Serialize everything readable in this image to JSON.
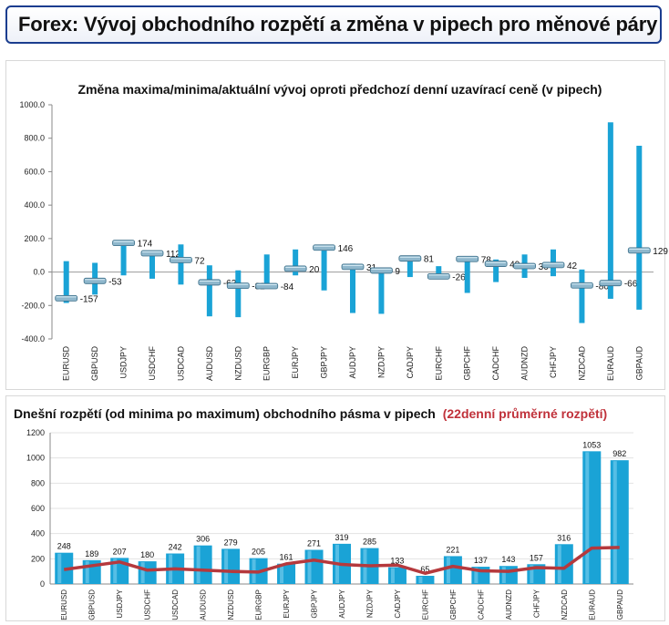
{
  "page": {
    "title": "Forex: Vývoj obchodního rozpětí a změna v pipech pro měnové páry"
  },
  "chart_data": [
    {
      "type": "bar",
      "title": "Změna maxima/minima/aktuální vývoj oproti předchozí denní uzavírací ceně (v pipech)",
      "categories": [
        "EURUSD",
        "GBPUSD",
        "USDJPY",
        "USDCHF",
        "USDCAD",
        "AUDUSD",
        "NZDUSD",
        "EURGBP",
        "EURJPY",
        "GBPJPY",
        "AUDJPY",
        "NZDJPY",
        "CADJPY",
        "EURCHF",
        "GBPCHF",
        "CADCHF",
        "AUDNZD",
        "CHFJPY",
        "NZDCAD",
        "EURAUD",
        "GBPAUD"
      ],
      "high": [
        65,
        55,
        185,
        125,
        165,
        40,
        10,
        105,
        135,
        155,
        50,
        20,
        95,
        35,
        95,
        75,
        105,
        135,
        15,
        895,
        755
      ],
      "low": [
        -185,
        -135,
        -20,
        -40,
        -75,
        -265,
        -270,
        -100,
        -20,
        -110,
        -245,
        -250,
        -30,
        -30,
        -125,
        -60,
        -35,
        -25,
        -305,
        -160,
        -225
      ],
      "current": [
        -157,
        -53,
        174,
        112,
        72,
        -62,
        -82,
        -84,
        20,
        146,
        31,
        9,
        81,
        -26,
        78,
        49,
        36,
        42,
        -80,
        -66,
        129
      ],
      "labels": [
        "-157",
        "-53",
        "174",
        "112",
        "72",
        "-62",
        "-82",
        "-84",
        "20",
        "146",
        "31",
        "9",
        "81",
        "-26",
        "78",
        "49",
        "36",
        "42",
        "-80",
        "-66",
        "129"
      ],
      "ylim": [
        -400,
        1000
      ],
      "yticks": [
        "1000.0",
        "800.0",
        "600.0",
        "400.0",
        "200.0",
        "0.0",
        "-200.0",
        "-400.0"
      ],
      "colors": {
        "range": "#1aa3d6",
        "marker": "#8fb7cc"
      }
    },
    {
      "type": "bar",
      "title": "Dnešní rozpětí (od minima po maximum) obchodního pásma v pipech",
      "title_highlight": "(22denní průměrné rozpětí)",
      "categories": [
        "EURUSD",
        "GBPUSD",
        "USDJPY",
        "USDCHF",
        "USDCAD",
        "AUDUSD",
        "NZDUSD",
        "EURGBP",
        "EURJPY",
        "GBPJPY",
        "AUDJPY",
        "NZDJPY",
        "CADJPY",
        "EURCHF",
        "GBPCHF",
        "CADCHF",
        "AUDNZD",
        "CHFJPY",
        "NZDCAD",
        "EURAUD",
        "GBPAUD"
      ],
      "values": [
        248,
        189,
        207,
        180,
        242,
        306,
        279,
        205,
        161,
        271,
        319,
        285,
        133,
        65,
        221,
        137,
        143,
        157,
        316,
        1053,
        982
      ],
      "labels": [
        "248",
        "189",
        "207",
        "180",
        "242",
        "306",
        "279",
        "205",
        "161",
        "271",
        "319",
        "285",
        "133",
        "65",
        "221",
        "137",
        "143",
        "157",
        "316",
        "1053",
        "982"
      ],
      "average": [
        115,
        145,
        175,
        110,
        120,
        110,
        100,
        95,
        160,
        190,
        155,
        145,
        150,
        85,
        140,
        105,
        100,
        130,
        125,
        285,
        290
      ],
      "ylim": [
        0,
        1200
      ],
      "yticks": [
        "1200",
        "1000",
        "800",
        "600",
        "400",
        "200",
        "0"
      ],
      "colors": {
        "bar": "#1aa3d6",
        "average": "#b5393d",
        "highlight": "#c0313a"
      }
    }
  ]
}
